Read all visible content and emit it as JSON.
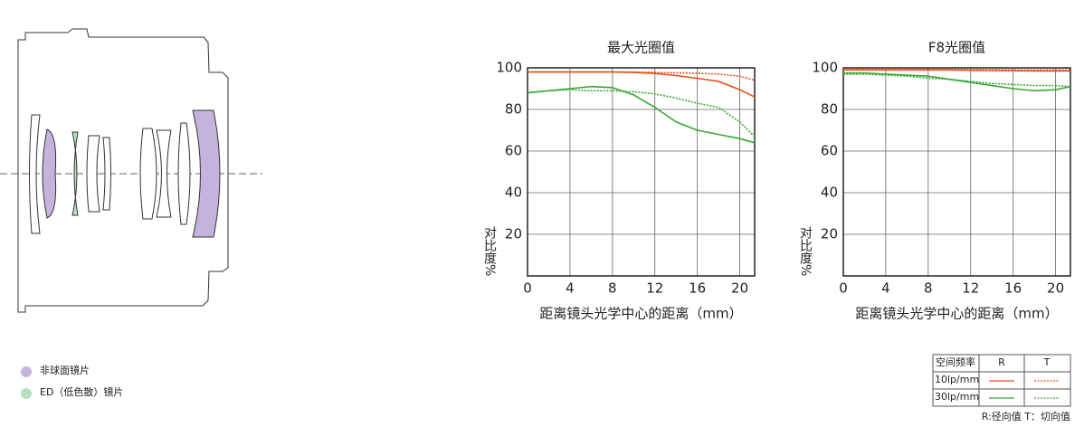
{
  "chart_data": [
    {
      "type": "line",
      "title": "最大光圈值",
      "y_label": "对比度%",
      "x_label": "距离镜头光学中心的距离（mm）",
      "x": [
        0,
        2,
        4,
        6,
        8,
        10,
        12,
        14,
        16,
        18,
        20,
        21.4
      ],
      "xlim": [
        0,
        21.4
      ],
      "ylim": [
        0,
        100
      ],
      "xticks": [
        0,
        4,
        8,
        12,
        16,
        20
      ],
      "yticks": [
        20,
        40,
        60,
        80,
        100
      ],
      "grid": true,
      "series": [
        {
          "color": "#e8501e",
          "style": "solid",
          "values": [
            98,
            98,
            98,
            98,
            98,
            97.8,
            97.3,
            96.3,
            95,
            93.5,
            89.5,
            86
          ]
        },
        {
          "color": "#e8501e",
          "style": "dotted",
          "values": [
            98,
            98,
            98,
            98,
            98,
            98,
            97.8,
            97.6,
            97.4,
            97,
            96,
            94
          ]
        },
        {
          "color": "#3aa836",
          "style": "solid",
          "values": [
            88,
            89,
            90,
            91,
            90.5,
            87,
            81,
            74,
            70,
            68,
            66,
            64
          ]
        },
        {
          "color": "#3aa836",
          "style": "dotted",
          "values": [
            88,
            89,
            89.5,
            89,
            89,
            88.5,
            87.5,
            85.5,
            83,
            81,
            74,
            67
          ]
        }
      ]
    },
    {
      "type": "line",
      "title": "F8光圈值",
      "y_label": "对比度%",
      "x_label": "距离镜头光学中心的距离（mm）",
      "x": [
        0,
        2,
        4,
        6,
        8,
        10,
        12,
        14,
        16,
        18,
        20,
        21.4
      ],
      "xlim": [
        0,
        21.4
      ],
      "ylim": [
        0,
        100
      ],
      "xticks": [
        0,
        4,
        8,
        12,
        16,
        20
      ],
      "yticks": [
        20,
        40,
        60,
        80,
        100
      ],
      "grid": true,
      "series": [
        {
          "color": "#e8501e",
          "style": "solid",
          "values": [
            99,
            99,
            99,
            99,
            99,
            99,
            98.8,
            98.7,
            98.6,
            98.5,
            98.5,
            98.5
          ]
        },
        {
          "color": "#e8501e",
          "style": "dotted",
          "values": [
            99.5,
            99.5,
            99.5,
            99.5,
            99.4,
            99.3,
            99.2,
            99.1,
            99,
            99,
            99,
            99
          ]
        },
        {
          "color": "#3aa836",
          "style": "solid",
          "values": [
            97.5,
            97.5,
            97,
            96.5,
            96,
            94.5,
            93,
            91.5,
            90,
            89,
            89.5,
            91
          ]
        },
        {
          "color": "#3aa836",
          "style": "dotted",
          "values": [
            97,
            97,
            96.5,
            96,
            95,
            94.5,
            93.5,
            92.5,
            92,
            91.5,
            91.5,
            91
          ]
        }
      ]
    }
  ],
  "lens_legend": [
    {
      "label": "非球面镜片",
      "color": "#c4b3dc"
    },
    {
      "label": "ED（低色散）镜片",
      "color": "#b9dfc1"
    }
  ],
  "mtf_legend": {
    "header": [
      "空间频率",
      "R",
      "T"
    ],
    "rows": [
      "10lp/mm",
      "30lp/mm"
    ],
    "note": "R:径向值  T：切向值"
  }
}
